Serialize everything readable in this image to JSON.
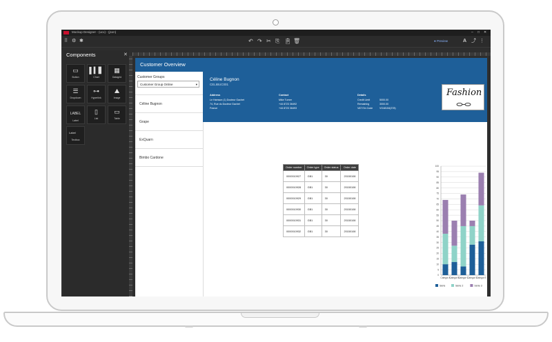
{
  "app": {
    "window_title": "Mockup Designer - (ucx) - (json)",
    "preview_label": "● Preview"
  },
  "toolbar": {
    "undo_icon": "undo-icon",
    "redo_icon": "redo-icon",
    "cut_icon": "cut-icon",
    "copy_icon": "copy-icon",
    "paste_icon": "paste-icon",
    "delete_icon": "delete-icon"
  },
  "components": {
    "title": "Components",
    "items": [
      {
        "label": "Button",
        "icon": "button-icon"
      },
      {
        "label": "Chart",
        "icon": "chart-icon"
      },
      {
        "label": "Datagrid",
        "icon": "datagrid-icon"
      },
      {
        "label": "Dropdown",
        "icon": "dropdown-icon"
      },
      {
        "label": "Hyperlink",
        "icon": "hyperlink-icon"
      },
      {
        "label": "Image",
        "icon": "image-icon"
      },
      {
        "label": "Label",
        "icon": "label-icon"
      },
      {
        "label": "List",
        "icon": "list-icon"
      },
      {
        "label": "Table",
        "icon": "table-icon"
      },
      {
        "label": "Textbox",
        "icon": "textbox-icon"
      }
    ],
    "glyphs": {
      "button": "▭",
      "label": "LABEL",
      "textbox": "Label",
      "close": "✕"
    }
  },
  "page": {
    "header_title": "Customer Overview",
    "groups_label": "Customer Groups",
    "groups_selected": "Customer Group Online",
    "nav_items": [
      "Céline Bugnon",
      "Grape",
      "ExQuarn",
      "Bimbo Cardone"
    ],
    "customer": {
      "name": "Céline Bugnon",
      "id": "CELIBUC001",
      "address_label": "Address",
      "address_lines": [
        "Le Hamson (1) Docteur Gachet",
        "74, Rue du Docteur Gachet",
        "France"
      ],
      "contact_label": "Contact",
      "contact_lines": [
        "Mike Turner",
        "+44 8723 36492",
        "+44 8723 36493"
      ],
      "details_label": "Details",
      "details_keys": [
        "Credit Limit",
        "Remaining",
        "VAT Ein Code"
      ],
      "details_values": [
        "5000.00",
        "3000.00",
        "VG48154(378)"
      ],
      "logo_text": "Fashion"
    },
    "orders": {
      "headers": [
        "Order number",
        "Order type",
        "Order status",
        "Order date"
      ],
      "rows": [
        [
          "0000010927",
          "GB1",
          "30",
          "20150108"
        ],
        [
          "0000010928",
          "GB1",
          "30",
          "20150108"
        ],
        [
          "0000010929",
          "GB1",
          "30",
          "20150108"
        ],
        [
          "0000010930",
          "GB1",
          "30",
          "20150108"
        ],
        [
          "0000010931",
          "GB1",
          "30",
          "20150108"
        ],
        [
          "0000010932",
          "GB1",
          "30",
          "20150108"
        ]
      ]
    }
  },
  "chart_data": {
    "type": "bar",
    "stacked": true,
    "categories": [
      "Categor A",
      "Categor B",
      "Categor C",
      "Categor D",
      "Categor E"
    ],
    "series": [
      {
        "name": "Série",
        "color": "#1e5f99",
        "values": [
          10,
          12,
          8,
          28,
          31
        ]
      },
      {
        "name": "Série 2",
        "color": "#8fd3c8",
        "values": [
          28,
          15,
          37,
          17,
          33
        ]
      },
      {
        "name": "Série 3",
        "color": "#9b7fb0",
        "values": [
          31,
          23,
          29,
          5,
          30
        ]
      }
    ],
    "ylim": [
      0,
      100
    ],
    "yticks": [
      "0",
      "5",
      "10",
      "15",
      "20",
      "25",
      "30",
      "35",
      "40",
      "45",
      "50",
      "55",
      "60",
      "65",
      "70",
      "75",
      "80",
      "85",
      "90",
      "95",
      "100"
    ],
    "grid": true,
    "legend": "bottom"
  }
}
